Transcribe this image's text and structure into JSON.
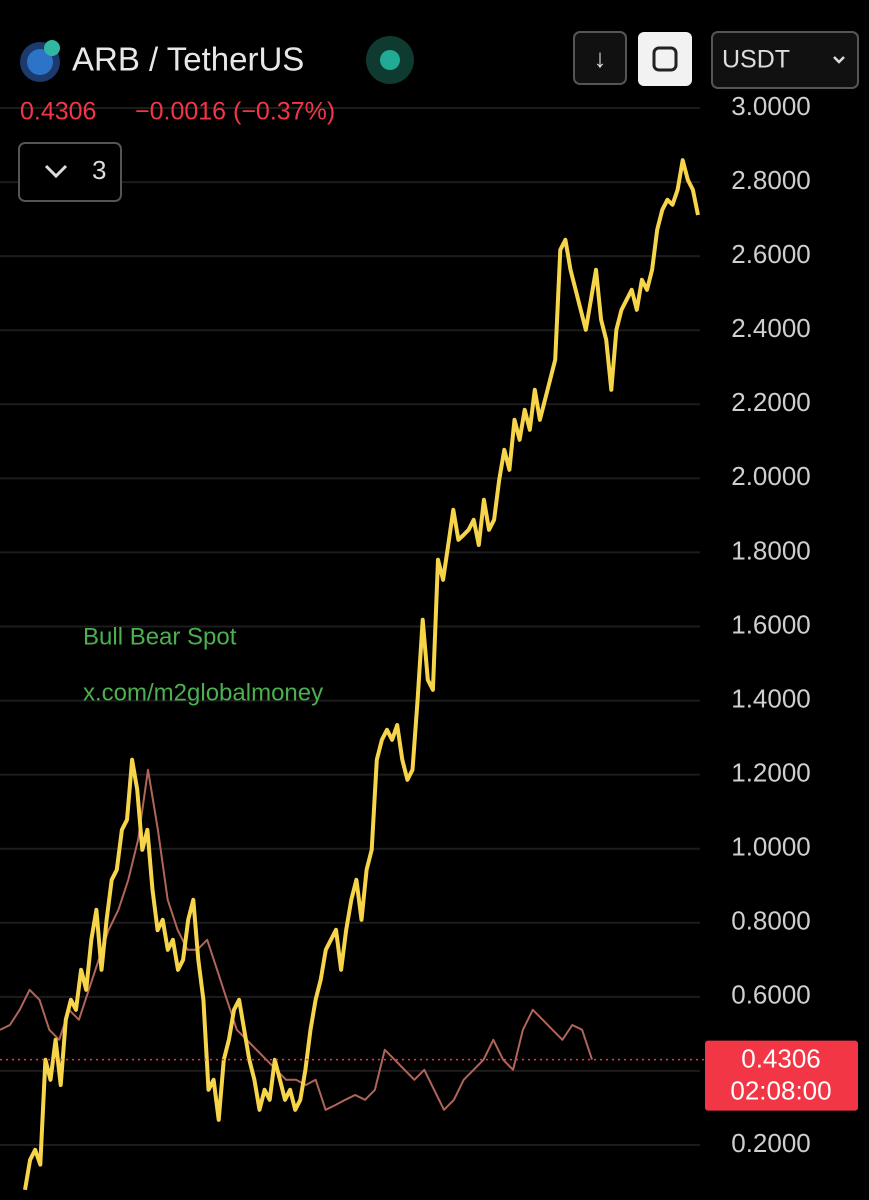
{
  "header": {
    "title": "ARB / TetherUS",
    "change": "−0.0016 (−0.37%)",
    "interval_count": "3",
    "currency": "USDT"
  },
  "watermark": [
    "Bull Bear Spot",
    "x.com/m2globalmoney"
  ],
  "chart_data": {
    "type": "line",
    "last_price": 0.4306,
    "countdown": "02:08:00",
    "last_price_color": "#f23645",
    "ylim": [
      0.0515,
      3.2916
    ],
    "yticks": [
      {
        "value": 3,
        "label": "3.0000"
      },
      {
        "value": 2.8,
        "label": "2.8000"
      },
      {
        "value": 2.6,
        "label": "2.6000"
      },
      {
        "value": 2.4,
        "label": "2.4000"
      },
      {
        "value": 2.2,
        "label": "2.2000"
      },
      {
        "value": 2,
        "label": "2.0000"
      },
      {
        "value": 1.8,
        "label": "1.8000"
      },
      {
        "value": 1.6,
        "label": "1.6000"
      },
      {
        "value": 1.4,
        "label": "1.4000"
      },
      {
        "value": 1.2,
        "label": "1.2000"
      },
      {
        "value": 1,
        "label": "1.0000"
      },
      {
        "value": 0.8,
        "label": "0.8000"
      },
      {
        "value": 0.6,
        "label": "0.6000"
      },
      {
        "value": 0.4
      },
      {
        "value": 0.2,
        "label": "0.2000"
      }
    ],
    "grid": true,
    "series": [
      {
        "color": "#b0655a",
        "values": [
          0.511,
          0.524,
          0.565,
          0.619,
          0.592,
          0.511,
          0.484,
          0.565,
          0.538,
          0.619,
          0.7,
          0.78,
          0.835,
          0.916,
          1.024,
          1.213,
          1.051,
          0.862,
          0.781,
          0.727,
          0.727,
          0.754,
          0.673,
          0.592,
          0.511,
          0.484,
          0.457,
          0.43,
          0.403,
          0.376,
          0.376,
          0.362,
          0.376,
          0.295,
          0.308,
          0.322,
          0.335,
          0.322,
          0.349,
          0.457,
          0.43,
          0.403,
          0.376,
          0.403,
          0.349,
          0.295,
          0.322,
          0.376,
          0.403,
          0.43,
          0.484,
          0.43,
          0.403,
          0.511,
          0.565,
          0.538,
          0.511,
          0.484,
          0.524,
          0.511,
          0.4306
        ]
      },
      {
        "color": "#f7d54a",
        "values": [
          0.079,
          0.16,
          0.187,
          0.147,
          0.43,
          0.376,
          0.484,
          0.362,
          0.538,
          0.592,
          0.565,
          0.673,
          0.619,
          0.754,
          0.835,
          0.673,
          0.808,
          0.916,
          0.943,
          1.051,
          1.078,
          1.24,
          1.16,
          0.997,
          1.051,
          0.889,
          0.78,
          0.808,
          0.727,
          0.754,
          0.673,
          0.7,
          0.808,
          0.862,
          0.7,
          0.592,
          0.349,
          0.376,
          0.268,
          0.43,
          0.484,
          0.565,
          0.592,
          0.511,
          0.43,
          0.376,
          0.295,
          0.349,
          0.322,
          0.43,
          0.376,
          0.322,
          0.349,
          0.295,
          0.322,
          0.403,
          0.511,
          0.592,
          0.646,
          0.727,
          0.754,
          0.781,
          0.673,
          0.781,
          0.862,
          0.916,
          0.808,
          0.943,
          0.997,
          1.24,
          1.294,
          1.321,
          1.294,
          1.334,
          1.24,
          1.186,
          1.213,
          1.402,
          1.618,
          1.456,
          1.429,
          1.78,
          1.726,
          1.82,
          1.915,
          1.834,
          1.847,
          1.861,
          1.888,
          1.82,
          1.942,
          1.861,
          1.888,
          1.996,
          2.077,
          2.023,
          2.158,
          2.104,
          2.185,
          2.131,
          2.239,
          2.158,
          2.212,
          2.266,
          2.32,
          2.617,
          2.644,
          2.563,
          2.509,
          2.455,
          2.401,
          2.482,
          2.563,
          2.428,
          2.374,
          2.239,
          2.401,
          2.455,
          2.482,
          2.509,
          2.455,
          2.536,
          2.509,
          2.563,
          2.671,
          2.725,
          2.752,
          2.739,
          2.779,
          2.859,
          2.806,
          2.779,
          2.711
        ]
      }
    ]
  }
}
